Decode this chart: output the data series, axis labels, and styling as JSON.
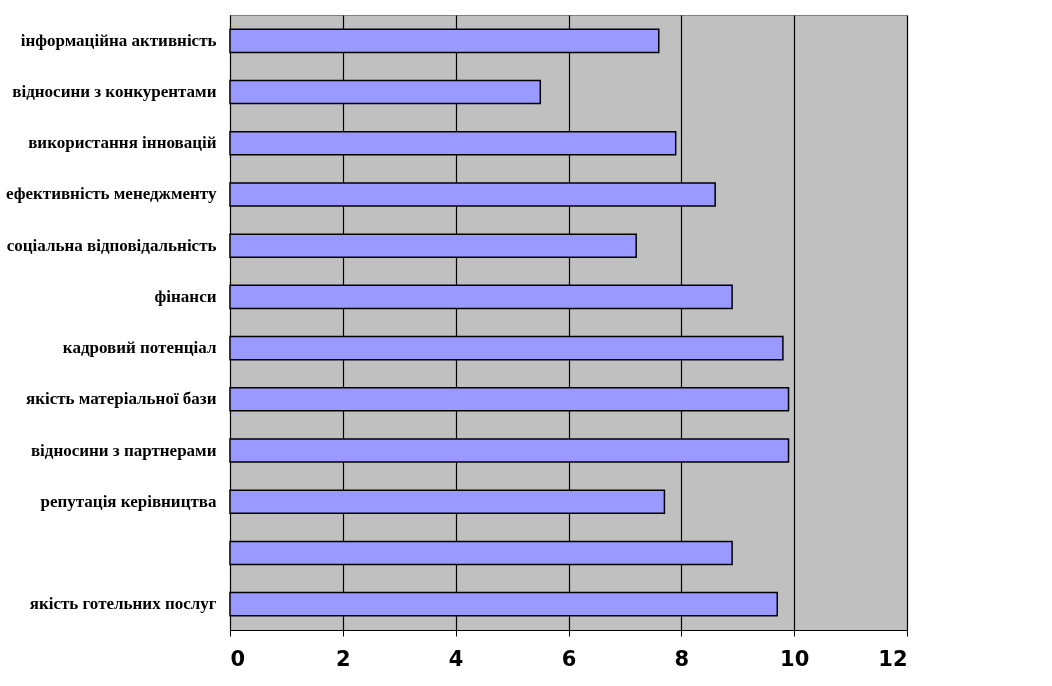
{
  "chart_data": {
    "type": "bar",
    "orientation": "horizontal",
    "categories": [
      "інформаційна активність",
      "відносини з конкурентами",
      "використання інновацій",
      "ефективність менеджменту",
      "соціальна відповідальність",
      "фінанси",
      "кадровий потенціал",
      "якість матеріальної бази",
      "відносини з партнерами",
      "репутація керівництва",
      null,
      "якість готельних послуг"
    ],
    "values": [
      7.6,
      5.5,
      7.9,
      8.6,
      7.2,
      8.9,
      9.8,
      9.9,
      9.9,
      7.7,
      8.9,
      9.7
    ],
    "color": "#9999ff",
    "xlim": [
      0,
      12
    ],
    "xticks": [
      0,
      2,
      4,
      6,
      8,
      10,
      12
    ],
    "grid": "x"
  }
}
